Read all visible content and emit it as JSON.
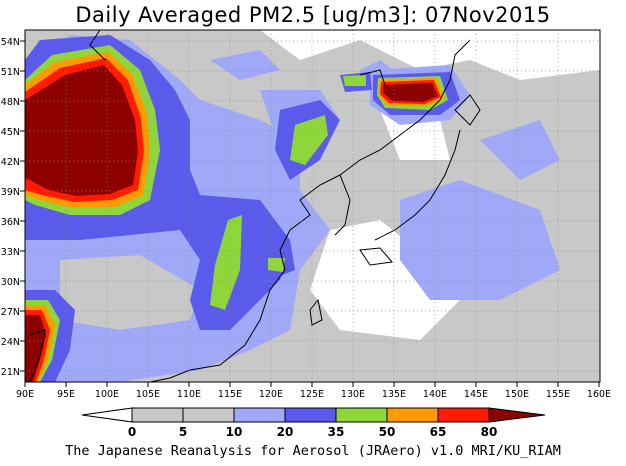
{
  "title": "Daily Averaged PM2.5 [ug/m3]: 07Nov2015",
  "credit": "The Japanese Reanalysis for Aerosol (JRAero) v1.0 MRI/KU_RIAM",
  "map": {
    "lon_range": [
      90,
      160
    ],
    "lat_range": [
      20,
      55
    ],
    "lon_ticks": [
      "90E",
      "95E",
      "100E",
      "105E",
      "110E",
      "115E",
      "120E",
      "125E",
      "130E",
      "135E",
      "140E",
      "145E",
      "150E",
      "155E",
      "160E"
    ],
    "lat_ticks": [
      "21N",
      "24N",
      "27N",
      "30N",
      "33N",
      "36N",
      "39N",
      "42N",
      "45N",
      "48N",
      "51N",
      "54N"
    ],
    "grid": true
  },
  "colorbar": {
    "levels": [
      "0",
      "5",
      "10",
      "20",
      "35",
      "50",
      "65",
      "80"
    ],
    "colors": [
      "#ffffff",
      "#c8c8c8",
      "#a0a8f8",
      "#5a5aeb",
      "#8fd63a",
      "#ff9a00",
      "#ff1c00",
      "#8c0000"
    ]
  }
}
